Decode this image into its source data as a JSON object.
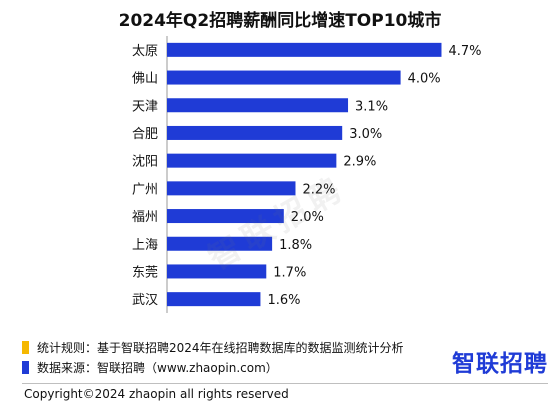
{
  "chart_data": {
    "type": "bar",
    "orientation": "horizontal",
    "title": "2024年Q2招聘薪酬同比增速TOP10城市",
    "categories": [
      "太原",
      "佛山",
      "天津",
      "合肥",
      "沈阳",
      "广州",
      "福州",
      "上海",
      "东莞",
      "武汉"
    ],
    "values": [
      4.7,
      4.0,
      3.1,
      3.0,
      2.9,
      2.2,
      2.0,
      1.8,
      1.7,
      1.6
    ],
    "data_labels": [
      "4.7%",
      "4.0%",
      "3.1%",
      "3.0%",
      "2.9%",
      "2.2%",
      "2.0%",
      "1.8%",
      "1.7%",
      "1.6%"
    ],
    "xlim": [
      0,
      5.0
    ],
    "grid": false,
    "bar_color": "#1f3bd6"
  },
  "watermark": "智联招聘",
  "notes": [
    {
      "text": "统计规则：基于智联招聘2024年在线招聘数据库的数据监测统计分析",
      "color": "#f5b800"
    },
    {
      "text": "数据来源：智联招聘（www.zhaopin.com）",
      "color": "#1f3bd6"
    }
  ],
  "brand": "智联招聘",
  "copyright": "Copyright©2024 zhaopin all rights reserved"
}
